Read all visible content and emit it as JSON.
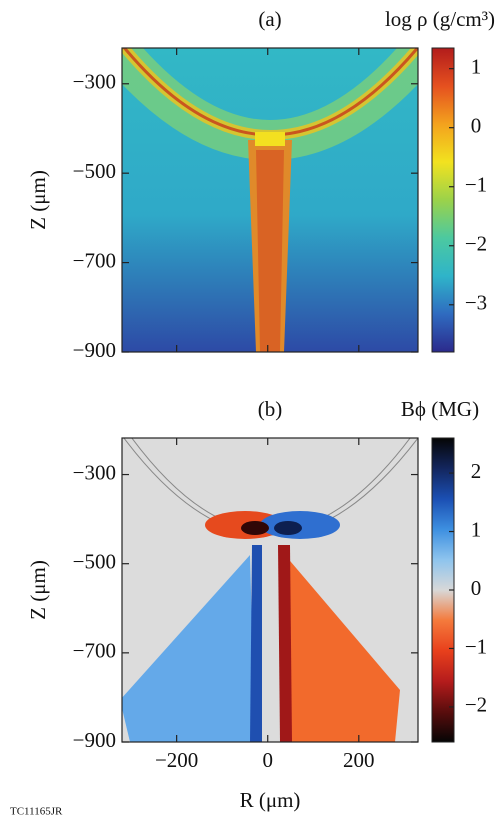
{
  "chart_data": [
    {
      "type": "heatmap",
      "panel": "(a)",
      "colorbar_title": "log ρ (g/cm³)",
      "ylabel": "Z (μm)",
      "xlim": [
        -320,
        330
      ],
      "xticks": [
        -200,
        0,
        200
      ],
      "ylim": [
        -900,
        -220
      ],
      "yticks": [
        {
          "value": -300,
          "label": "−300"
        },
        {
          "value": -500,
          "label": "−500"
        },
        {
          "value": -700,
          "label": "−700"
        },
        {
          "value": -900,
          "label": "−900"
        }
      ],
      "clim": [
        -3.8,
        1.35
      ],
      "cticks": [
        1,
        0,
        {
          "value": -1,
          "label": "−1"
        },
        {
          "value": -2,
          "label": "−2"
        },
        {
          "value": -3,
          "label": "−3"
        }
      ],
      "colorscale": [
        "#2b2a8c",
        "#2f6bc0",
        "#2fb4c9",
        "#4cc9a0",
        "#9bd24a",
        "#f2e21f",
        "#f3a21e",
        "#e5501f",
        "#b21c1c"
      ]
    },
    {
      "type": "heatmap",
      "panel": "(b)",
      "colorbar_title": "Bϕ (MG)",
      "ylabel": "Z (μm)",
      "xlabel": "R (μm)",
      "xlim": [
        -320,
        330
      ],
      "xticks": [
        {
          "value": -200,
          "label": "−200"
        },
        0,
        200
      ],
      "ylim": [
        -900,
        -218
      ],
      "yticks": [
        {
          "value": -300,
          "label": "−300"
        },
        {
          "value": -500,
          "label": "−500"
        },
        {
          "value": -700,
          "label": "−700"
        },
        {
          "value": -900,
          "label": "−900"
        }
      ],
      "clim": [
        -2.6,
        2.6
      ],
      "cticks": [
        2,
        1,
        0,
        {
          "value": -1,
          "label": "−1"
        },
        {
          "value": -2,
          "label": "−2"
        }
      ],
      "colorscale": [
        "#050505",
        "#5a0d0d",
        "#b51c1c",
        "#e8401c",
        "#f47a3c",
        "#d8d8d8",
        "#8ec4ee",
        "#3d8fe0",
        "#1b4fb3",
        "#13265e",
        "#050505"
      ]
    }
  ],
  "footer": "TC11165JR"
}
